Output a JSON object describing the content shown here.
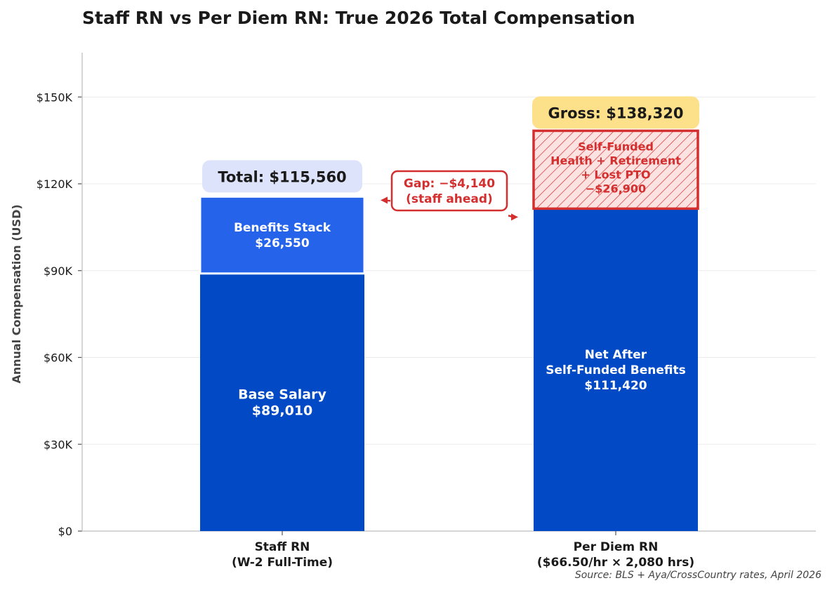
{
  "chart_data": {
    "type": "bar",
    "stacked": true,
    "title": "Staff RN vs Per Diem RN: True 2026 Total Compensation",
    "ylabel": "Annual Compensation (USD)",
    "xlabel": "",
    "ylim": [
      0,
      165000
    ],
    "yticks": [
      0,
      30000,
      60000,
      90000,
      120000,
      150000
    ],
    "ytick_labels": [
      "$0",
      "$30K",
      "$60K",
      "$90K",
      "$120K",
      "$150K"
    ],
    "grid": "horizontal",
    "categories": [
      [
        "Staff RN",
        "(W-2 Full-Time)"
      ],
      [
        "Per Diem RN",
        "($66.50/hr × 2,080 hrs)"
      ]
    ],
    "colors": {
      "base": "#0249c6",
      "benefits": "#2563eb",
      "deduction_fill": "#fde2e2",
      "deduction_edge": "#d32f2f",
      "total_badge": "#dde3fb",
      "gross_badge": "#fde08a"
    },
    "segments": [
      {
        "category": 0,
        "from": 0,
        "to": 89010,
        "color": "base",
        "label": [
          "Base Salary",
          "$89,010"
        ],
        "font": 19
      },
      {
        "category": 0,
        "from": 89010,
        "to": 115560,
        "color": "benefits",
        "label": [
          "Benefits Stack",
          "$26,550"
        ],
        "font": 17
      },
      {
        "category": 1,
        "from": 0,
        "to": 111420,
        "color": "base",
        "label": [
          "Net After",
          "Self-Funded Benefits",
          "$111,420"
        ],
        "font": 17
      },
      {
        "category": 1,
        "from": 111420,
        "to": 138320,
        "color": "deduction",
        "hatched": true,
        "label": [
          "Self-Funded",
          "Health + Retirement",
          "+ Lost PTO",
          "−$26,900"
        ],
        "font": 16
      }
    ],
    "totals": [
      {
        "category": 0,
        "value": 115560,
        "label": "Total: $115,560"
      },
      {
        "category": 1,
        "value": 138320,
        "label": "Gross: $138,320"
      }
    ],
    "annotations": [
      {
        "text": [
          "Gap: −$4,140",
          "(staff ahead)"
        ],
        "from_value": 115560,
        "to_value": 111420
      }
    ],
    "source": "Source: BLS + Aya/CrossCountry rates, April 2026"
  }
}
